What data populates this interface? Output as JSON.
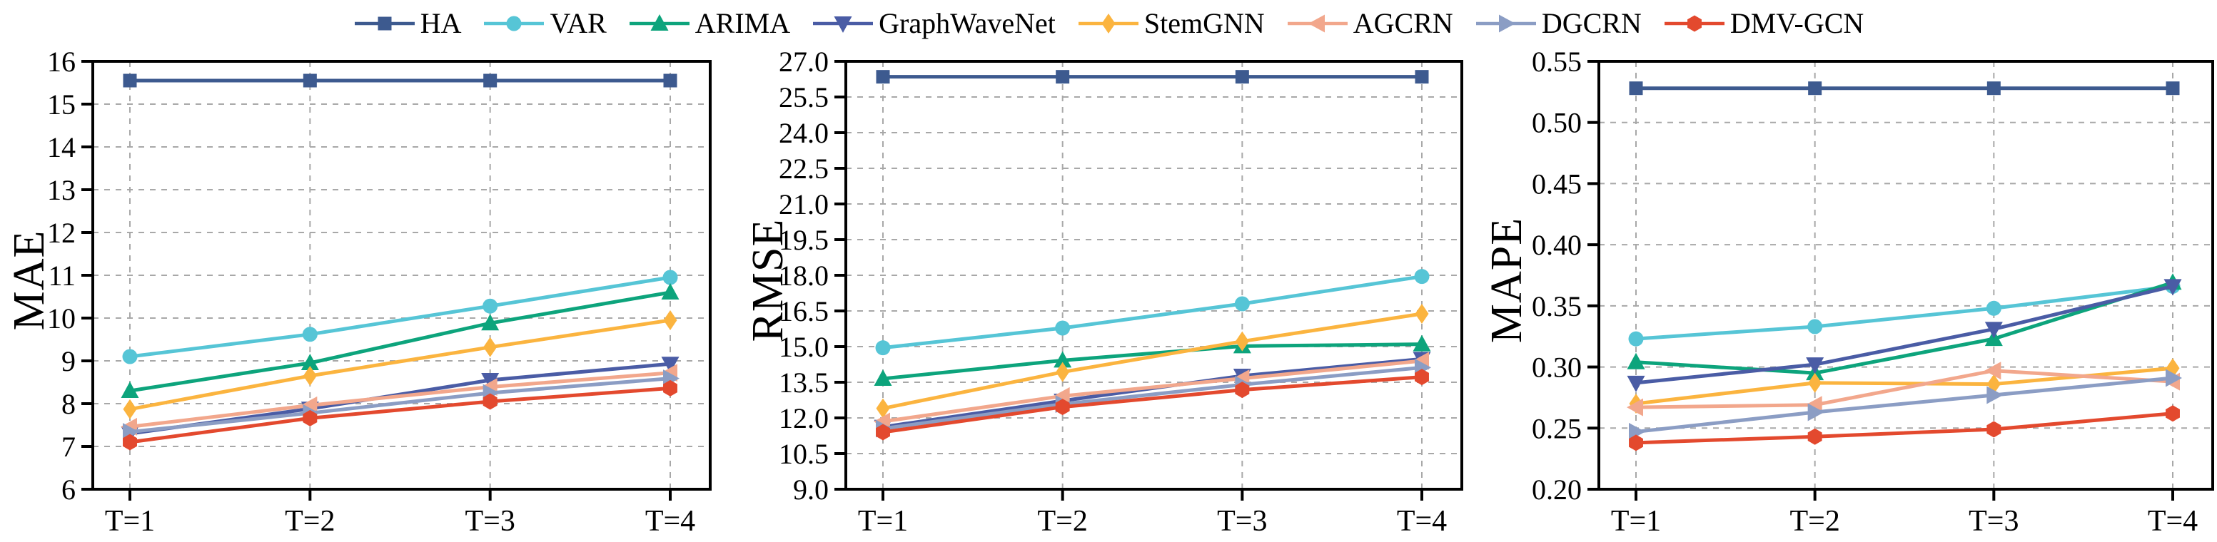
{
  "figure": {
    "background": "#ffffff"
  },
  "legend": {
    "position": "top-center",
    "items": [
      {
        "label": "HA",
        "color": "#3d5a8f",
        "marker": "square"
      },
      {
        "label": "VAR",
        "color": "#56c5d6",
        "marker": "circle"
      },
      {
        "label": "ARIMA",
        "color": "#0da47c",
        "marker": "triangle-up"
      },
      {
        "label": "GraphWaveNet",
        "color": "#4a5ca5",
        "marker": "triangle-down"
      },
      {
        "label": "StemGNN",
        "color": "#fbb43f",
        "marker": "diamond"
      },
      {
        "label": "AGCRN",
        "color": "#f2a78c",
        "marker": "triangle-left"
      },
      {
        "label": "DGCRN",
        "color": "#8b9dc4",
        "marker": "triangle-right"
      },
      {
        "label": "DMV-GCN",
        "color": "#e3492e",
        "marker": "hexagon"
      }
    ]
  },
  "chart_data": [
    {
      "type": "line",
      "ylabel": "MAE",
      "categories": [
        "T=1",
        "T=2",
        "T=3",
        "T=4"
      ],
      "ylim": [
        6,
        16
      ],
      "ytick_step": 1,
      "ytick_labels": [
        "6",
        "7",
        "8",
        "9",
        "10",
        "11",
        "12",
        "13",
        "14",
        "15",
        "16"
      ],
      "grid": true,
      "series": [
        {
          "name": "HA",
          "values": [
            15.55,
            15.55,
            15.55,
            15.55
          ]
        },
        {
          "name": "VAR",
          "values": [
            9.1,
            9.62,
            10.28,
            10.95
          ]
        },
        {
          "name": "ARIMA",
          "values": [
            8.3,
            8.95,
            9.88,
            10.6
          ]
        },
        {
          "name": "GraphWaveNet",
          "values": [
            7.3,
            7.88,
            8.55,
            8.93
          ]
        },
        {
          "name": "StemGNN",
          "values": [
            7.87,
            8.65,
            9.32,
            9.95
          ]
        },
        {
          "name": "AGCRN",
          "values": [
            7.46,
            7.96,
            8.39,
            8.72
          ]
        },
        {
          "name": "DGCRN",
          "values": [
            7.34,
            7.78,
            8.25,
            8.59
          ]
        },
        {
          "name": "DMV-GCN",
          "values": [
            7.1,
            7.66,
            8.05,
            8.36
          ]
        }
      ]
    },
    {
      "type": "line",
      "ylabel": "RMSE",
      "categories": [
        "T=1",
        "T=2",
        "T=3",
        "T=4"
      ],
      "ylim": [
        9,
        27
      ],
      "ytick_step": 1.5,
      "ytick_labels": [
        "9.0",
        "10.5",
        "12.0",
        "13.5",
        "15.0",
        "16.5",
        "18.0",
        "19.5",
        "21.0",
        "22.5",
        "24.0",
        "25.5",
        "27.0"
      ],
      "grid": true,
      "series": [
        {
          "name": "HA",
          "values": [
            26.35,
            26.35,
            26.35,
            26.35
          ]
        },
        {
          "name": "VAR",
          "values": [
            14.95,
            15.78,
            16.8,
            17.95
          ]
        },
        {
          "name": "ARIMA",
          "values": [
            13.65,
            14.42,
            15.02,
            15.1
          ]
        },
        {
          "name": "GraphWaveNet",
          "values": [
            11.62,
            12.72,
            13.77,
            14.48
          ]
        },
        {
          "name": "StemGNN",
          "values": [
            12.4,
            13.93,
            15.22,
            16.38
          ]
        },
        {
          "name": "AGCRN",
          "values": [
            11.85,
            12.92,
            13.66,
            14.4
          ]
        },
        {
          "name": "DGCRN",
          "values": [
            11.55,
            12.58,
            13.4,
            14.12
          ]
        },
        {
          "name": "DMV-GCN",
          "values": [
            11.4,
            12.46,
            13.18,
            13.72
          ]
        }
      ]
    },
    {
      "type": "line",
      "ylabel": "MAPE",
      "categories": [
        "T=1",
        "T=2",
        "T=3",
        "T=4"
      ],
      "ylim": [
        0.2,
        0.55
      ],
      "ytick_step": 0.05,
      "ytick_labels": [
        "0.20",
        "0.25",
        "0.30",
        "0.35",
        "0.40",
        "0.45",
        "0.50",
        "0.55"
      ],
      "grid": true,
      "series": [
        {
          "name": "HA",
          "values": [
            0.528,
            0.528,
            0.528,
            0.528
          ]
        },
        {
          "name": "VAR",
          "values": [
            0.323,
            0.333,
            0.348,
            0.366
          ]
        },
        {
          "name": "ARIMA",
          "values": [
            0.304,
            0.295,
            0.323,
            0.369
          ]
        },
        {
          "name": "GraphWaveNet",
          "values": [
            0.287,
            0.302,
            0.331,
            0.366
          ]
        },
        {
          "name": "StemGNN",
          "values": [
            0.27,
            0.287,
            0.286,
            0.299
          ]
        },
        {
          "name": "AGCRN",
          "values": [
            0.267,
            0.269,
            0.297,
            0.288
          ]
        },
        {
          "name": "DGCRN",
          "values": [
            0.247,
            0.263,
            0.277,
            0.291
          ]
        },
        {
          "name": "DMV-GCN",
          "values": [
            0.238,
            0.243,
            0.249,
            0.262
          ]
        }
      ]
    }
  ]
}
